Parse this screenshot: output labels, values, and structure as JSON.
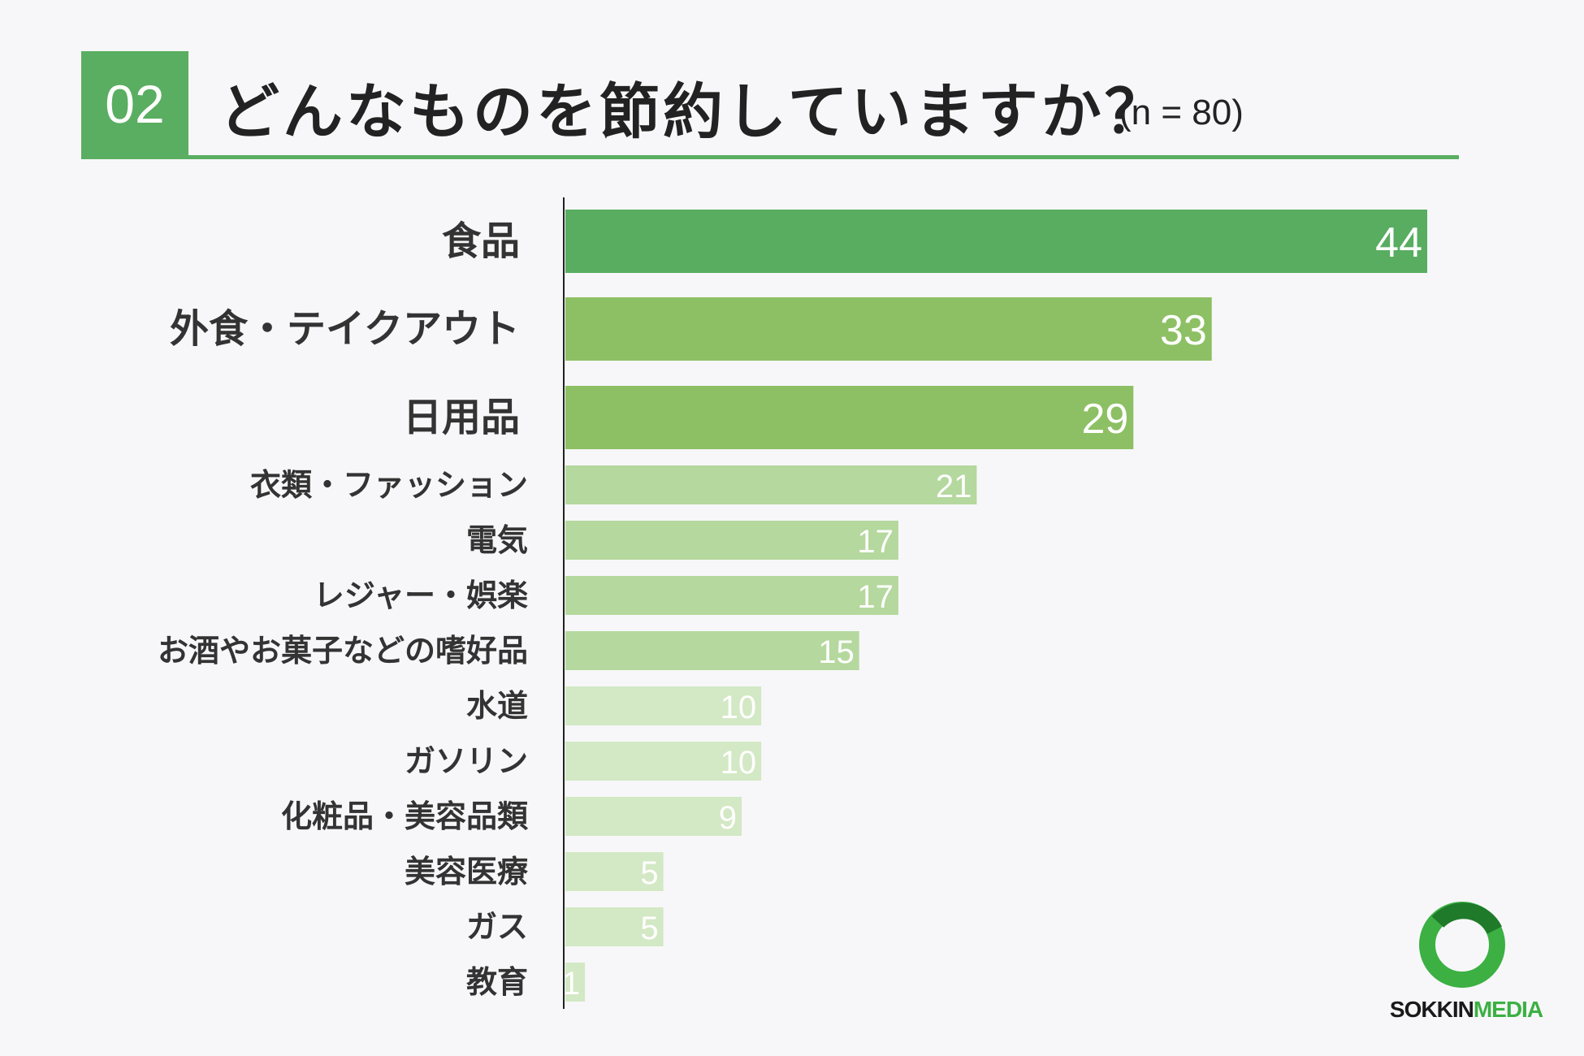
{
  "header": {
    "badge": "02",
    "title": "どんなものを節約していますか？",
    "sample": "(n = 80)"
  },
  "chart_data": {
    "type": "bar",
    "orientation": "horizontal",
    "categories": [
      "食品",
      "外食・テイクアウト",
      "日用品",
      "衣類・ファッション",
      "電気",
      "レジャー・娯楽",
      "お酒やお菓子などの嗜好品",
      "水道",
      "ガソリン",
      "化粧品・美容品類",
      "美容医療",
      "ガス",
      "教育"
    ],
    "values": [
      44,
      33,
      29,
      21,
      17,
      17,
      15,
      10,
      10,
      9,
      5,
      5,
      1
    ],
    "xlim": [
      0,
      44
    ],
    "colors": {
      "top": "#58ad60",
      "high": "#8dc064",
      "mid": "#b5d89e",
      "low": "#d3e8c4",
      "axis": "#222222"
    }
  },
  "logo": {
    "name_part1": "SOKKIN",
    "name_part2": "MEDIA",
    "ring_color": "#3cb043"
  }
}
